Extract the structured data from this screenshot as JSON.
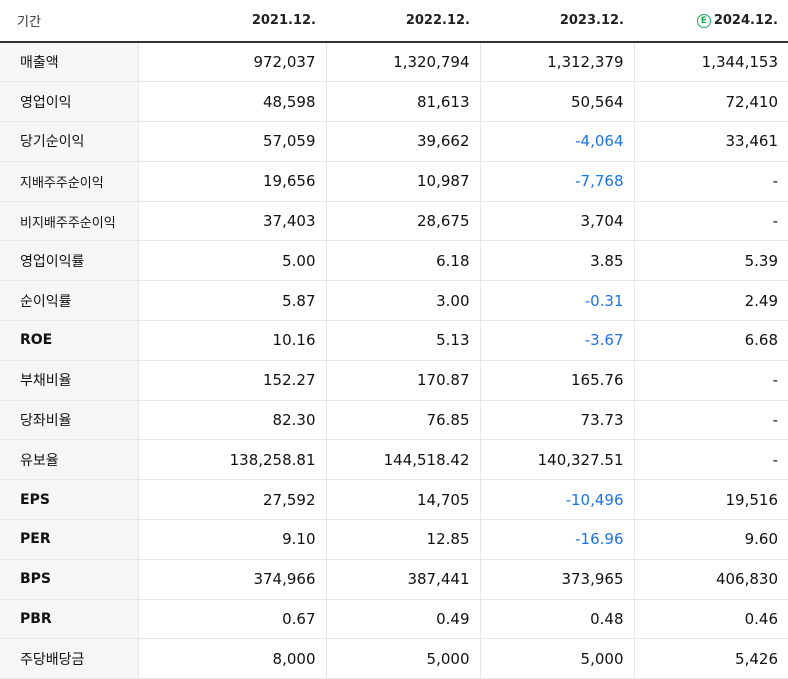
{
  "header": {
    "label": "기간",
    "columns": [
      "2021.12.",
      "2022.12.",
      "2023.12.",
      "2024.12."
    ],
    "estimate_badge": "E",
    "estimate_color": "#1ca85a"
  },
  "negative_color": "#1a73e8",
  "rows": [
    {
      "label": "매출액",
      "values": [
        "972,037",
        "1,320,794",
        "1,312,379",
        "1,344,153"
      ]
    },
    {
      "label": "영업이익",
      "values": [
        "48,598",
        "81,613",
        "50,564",
        "72,410"
      ]
    },
    {
      "label": "당기순이익",
      "values": [
        "57,059",
        "39,662",
        "-4,064",
        "33,461"
      ]
    },
    {
      "label": "지배주주순이익",
      "values": [
        "19,656",
        "10,987",
        "-7,768",
        "-"
      ]
    },
    {
      "label": "비지배주주순이익",
      "values": [
        "37,403",
        "28,675",
        "3,704",
        "-"
      ]
    },
    {
      "label": "영업이익률",
      "values": [
        "5.00",
        "6.18",
        "3.85",
        "5.39"
      ]
    },
    {
      "label": "순이익률",
      "values": [
        "5.87",
        "3.00",
        "-0.31",
        "2.49"
      ]
    },
    {
      "label": "ROE",
      "values": [
        "10.16",
        "5.13",
        "-3.67",
        "6.68"
      ]
    },
    {
      "label": "부채비율",
      "values": [
        "152.27",
        "170.87",
        "165.76",
        "-"
      ]
    },
    {
      "label": "당좌비율",
      "values": [
        "82.30",
        "76.85",
        "73.73",
        "-"
      ]
    },
    {
      "label": "유보율",
      "values": [
        "138,258.81",
        "144,518.42",
        "140,327.51",
        "-"
      ]
    },
    {
      "label": "EPS",
      "values": [
        "27,592",
        "14,705",
        "-10,496",
        "19,516"
      ]
    },
    {
      "label": "PER",
      "values": [
        "9.10",
        "12.85",
        "-16.96",
        "9.60"
      ]
    },
    {
      "label": "BPS",
      "values": [
        "374,966",
        "387,441",
        "373,965",
        "406,830"
      ]
    },
    {
      "label": "PBR",
      "values": [
        "0.67",
        "0.49",
        "0.48",
        "0.46"
      ]
    },
    {
      "label": "주당배당금",
      "values": [
        "8,000",
        "5,000",
        "5,000",
        "5,426"
      ]
    }
  ]
}
